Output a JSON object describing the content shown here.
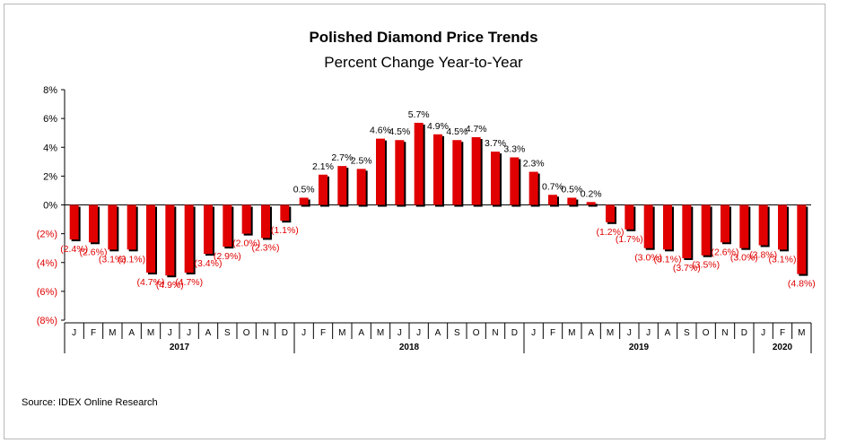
{
  "header": {
    "title": "Polished Diamond Price Trends",
    "subtitle": "Percent Change Year-to-Year"
  },
  "footer": {
    "source": "Source: IDEX Online Research"
  },
  "colors": {
    "positive_bar": "#e00000",
    "negative_bar": "#e00000",
    "bar_shadow": "#000000",
    "positive_label": "#000000",
    "negative_label": "#e00000"
  },
  "chart_data": {
    "type": "bar",
    "title": "Polished Diamond Price Trends",
    "subtitle": "Percent Change Year-to-Year",
    "xlabel": "",
    "ylabel": "",
    "ylim": [
      -8,
      8
    ],
    "y_ticks": [
      8,
      6,
      4,
      2,
      0,
      -2,
      -4,
      -6,
      -8
    ],
    "y_tick_labels": [
      "8%",
      "6%",
      "4%",
      "2%",
      "0%",
      "(2%)",
      "(4%)",
      "(6%)",
      "(8%)"
    ],
    "grid": false,
    "legend": "none",
    "categories": [
      "J",
      "F",
      "M",
      "A",
      "M",
      "J",
      "J",
      "A",
      "S",
      "O",
      "N",
      "D",
      "J",
      "F",
      "M",
      "A",
      "M",
      "J",
      "J",
      "A",
      "S",
      "O",
      "N",
      "D",
      "J",
      "F",
      "M",
      "A",
      "M",
      "J",
      "J",
      "A",
      "S",
      "O",
      "N",
      "D",
      "J",
      "F",
      "M"
    ],
    "year_groups": [
      {
        "label": "2017",
        "count": 12
      },
      {
        "label": "2018",
        "count": 12
      },
      {
        "label": "2019",
        "count": 12
      },
      {
        "label": "2020",
        "count": 3
      }
    ],
    "values": [
      -2.4,
      -2.6,
      -3.1,
      -3.1,
      -4.7,
      -4.9,
      -4.7,
      -3.4,
      -2.9,
      -2.0,
      -2.3,
      -1.1,
      0.5,
      2.1,
      2.7,
      2.5,
      4.6,
      4.5,
      5.7,
      4.9,
      4.5,
      4.7,
      3.7,
      3.3,
      2.3,
      0.7,
      0.5,
      0.2,
      -1.2,
      -1.7,
      -3.0,
      -3.1,
      -3.7,
      -3.5,
      -2.6,
      -3.0,
      -2.8,
      -3.1,
      -4.8
    ],
    "data_labels": [
      "(2.4%)",
      "(2.6%)",
      "(3.1%)",
      "(3.1%)",
      "(4.7%)",
      "(4.9%)",
      "(4.7%)",
      "(3.4%)",
      "(2.9%)",
      "(2.0%)",
      "(2.3%)",
      "(1.1%)",
      "0.5%",
      "2.1%",
      "2.7%",
      "2.5%",
      "4.6%",
      "4.5%",
      "5.7%",
      "4.9%",
      "4.5%",
      "4.7%",
      "3.7%",
      "3.3%",
      "2.3%",
      "0.7%",
      "0.5%",
      "0.2%",
      "(1.2%)",
      "(1.7%)",
      "(3.0%)",
      "(3.1%)",
      "(3.7%)",
      "(3.5%)",
      "(2.6%)",
      "(3.0%)",
      "(2.8%)",
      "(3.1%)",
      "(4.8%)"
    ]
  }
}
